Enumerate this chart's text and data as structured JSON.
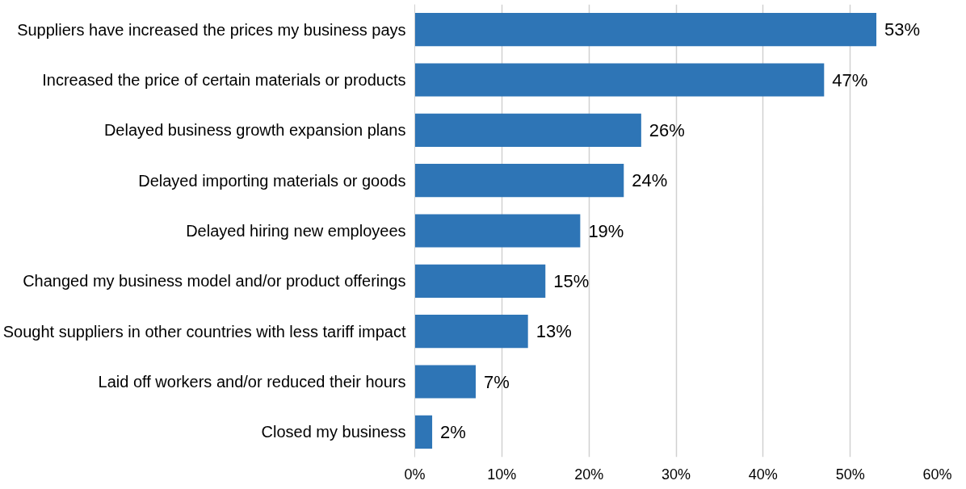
{
  "chart_data": {
    "type": "bar",
    "orientation": "horizontal",
    "categories": [
      "Suppliers have increased the prices my business pays",
      "Increased the price of certain materials or products",
      "Delayed business growth expansion plans",
      "Delayed importing materials or goods",
      "Delayed hiring new employees",
      "Changed my business model and/or product offerings",
      "Sought suppliers in other countries with less tariff impact",
      "Laid off workers and/or reduced their hours",
      "Closed my business"
    ],
    "values": [
      53,
      47,
      26,
      24,
      19,
      15,
      13,
      7,
      2
    ],
    "value_labels": [
      "53%",
      "47%",
      "26%",
      "24%",
      "19%",
      "15%",
      "13%",
      "7%",
      "2%"
    ],
    "color": "#2e75b6",
    "xlim": [
      0,
      60
    ],
    "xticks": [
      {
        "value": 0,
        "label": "0%"
      },
      {
        "value": 10,
        "label": "10%"
      },
      {
        "value": 20,
        "label": "20%"
      },
      {
        "value": 30,
        "label": "30%"
      },
      {
        "value": 40,
        "label": "40%"
      },
      {
        "value": 50,
        "label": "50%"
      },
      {
        "value": 60,
        "label": "60%"
      }
    ],
    "grid": "x"
  }
}
